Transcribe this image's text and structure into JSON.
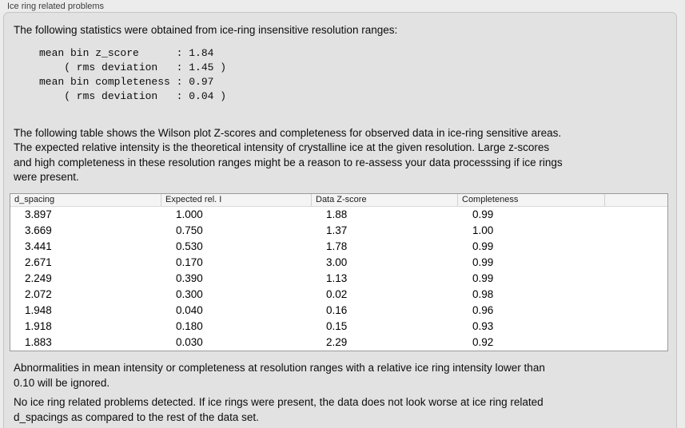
{
  "group": {
    "title": "Ice ring related problems"
  },
  "intro_text": "The following statistics were obtained from ice-ring insensitive resolution ranges:",
  "stats_block": "mean bin z_score      : 1.84\n    ( rms deviation   : 1.45 )\nmean bin completeness : 0.97\n    ( rms deviation   : 0.04 )",
  "stats": {
    "mean_bin_z_score": "1.84",
    "z_score_rms_deviation": "1.45",
    "mean_bin_completeness": "0.97",
    "completeness_rms_deviation": "0.04"
  },
  "table_intro": "The following table shows the Wilson plot Z-scores and completeness for observed data in ice-ring sensitive areas.\nThe expected relative intensity is the theoretical intensity of crystalline ice at the given resolution. Large z-scores\nand high completeness in these resolution ranges might be a reason to re-assess your data processsing if ice rings\nwere present.",
  "table": {
    "columns": [
      "d_spacing",
      "Expected rel. I",
      "Data Z-score",
      "Completeness"
    ],
    "rows": [
      [
        "3.897",
        "1.000",
        "1.88",
        "0.99"
      ],
      [
        "3.669",
        "0.750",
        "1.37",
        "1.00"
      ],
      [
        "3.441",
        "0.530",
        "1.78",
        "0.99"
      ],
      [
        "2.671",
        "0.170",
        "3.00",
        "0.99"
      ],
      [
        "2.249",
        "0.390",
        "1.13",
        "0.99"
      ],
      [
        "2.072",
        "0.300",
        "0.02",
        "0.98"
      ],
      [
        "1.948",
        "0.040",
        "0.16",
        "0.96"
      ],
      [
        "1.918",
        "0.180",
        "0.15",
        "0.93"
      ],
      [
        "1.883",
        "0.030",
        "2.29",
        "0.92"
      ]
    ]
  },
  "note_text": "Abnormalities in mean intensity or completeness at resolution ranges with a relative ice ring intensity lower than\n0.10 will be ignored.",
  "conclusion_text": "No ice ring related problems detected. If ice rings were present, the data does not look worse at ice ring related\nd_spacings as compared to the rest of the data set.",
  "colors": {
    "page_bg": "#ececec",
    "panel_bg": "#e2e2e2",
    "panel_border": "#c5c5c5",
    "table_border": "#9a9a9a",
    "header_bg": "#f4f4f4",
    "title_color": "#3c3c3c",
    "text_color": "#0c0c0c"
  }
}
